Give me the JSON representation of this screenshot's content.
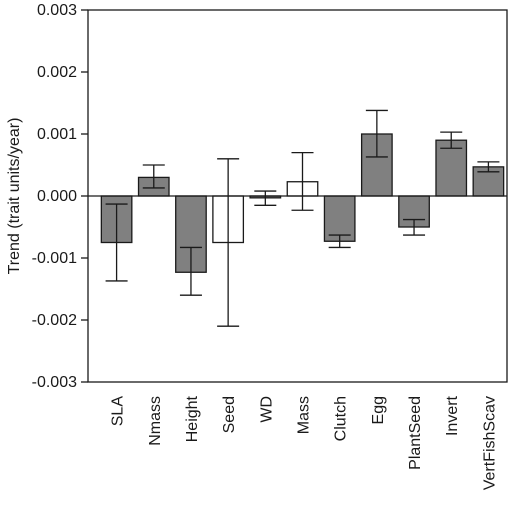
{
  "chart_data": {
    "type": "bar",
    "title": "",
    "xlabel": "",
    "ylabel": "Trend (trait units/year)",
    "ylim": [
      -0.003,
      0.003
    ],
    "yticks": [
      0.003,
      0.002,
      0.001,
      0.0,
      -0.001,
      -0.002,
      -0.003
    ],
    "ytick_labels": [
      "0.003",
      "0.002",
      "0.001",
      "0.000",
      "-0.001",
      "-0.002",
      "-0.003"
    ],
    "grid": false,
    "legend": "none",
    "categories": [
      "SLA",
      "Nmass",
      "Height",
      "Seed",
      "WD",
      "Mass",
      "Clutch",
      "Egg",
      "PlantSeed",
      "Invert",
      "VertFishScav"
    ],
    "values": [
      -0.00075,
      0.0003,
      -0.00123,
      -0.00075,
      -3e-05,
      0.00023,
      -0.00073,
      0.001,
      -0.0005,
      0.0009,
      0.00047
    ],
    "error_low": [
      -0.00137,
      0.00013,
      -0.0016,
      -0.0021,
      -0.00015,
      -0.00023,
      -0.00083,
      0.00063,
      -0.00063,
      0.00077,
      0.00039
    ],
    "error_high": [
      -0.00013,
      0.0005,
      -0.00083,
      0.0006,
      8e-05,
      0.0007,
      -0.00063,
      0.00138,
      -0.00038,
      0.00103,
      0.00055
    ],
    "fill": [
      "gray",
      "gray",
      "gray",
      "white",
      "gray",
      "white",
      "gray",
      "gray",
      "gray",
      "gray",
      "gray"
    ],
    "colors": {
      "gray": "#808080",
      "white": "#ffffff",
      "stroke": "#1a1a1a"
    }
  }
}
